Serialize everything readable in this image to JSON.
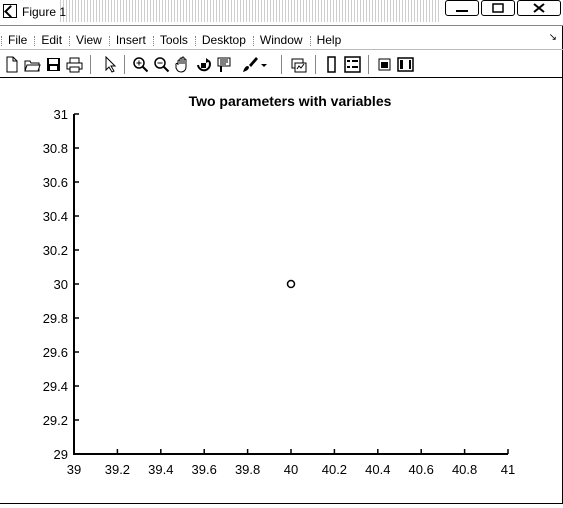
{
  "window": {
    "title": "Figure 1"
  },
  "menu": [
    "File",
    "Edit",
    "View",
    "Insert",
    "Tools",
    "Desktop",
    "Window",
    "Help"
  ],
  "toolbar_icons": [
    "new-figure-icon",
    "open-file-icon",
    "save-icon",
    "print-icon",
    "edit-plot-icon",
    "zoom-in-icon",
    "zoom-out-icon",
    "pan-icon",
    "rotate-3d-icon",
    "data-cursor-icon",
    "brush-icon",
    "link-plot-icon",
    "colorbar-icon",
    "legend-icon",
    "hide-plot-tools-icon",
    "show-plot-tools-icon"
  ],
  "chart_data": {
    "type": "scatter",
    "title": "Two parameters with variables",
    "xlabel": "",
    "ylabel": "",
    "xlim": [
      39,
      41
    ],
    "ylim": [
      29,
      31
    ],
    "xticks": [
      "39",
      "39.2",
      "39.4",
      "39.6",
      "39.8",
      "40",
      "40.2",
      "40.4",
      "40.6",
      "40.8",
      "41"
    ],
    "yticks": [
      "29",
      "29.2",
      "29.4",
      "29.6",
      "29.8",
      "30",
      "30.2",
      "30.4",
      "30.6",
      "30.8",
      "31"
    ],
    "points": [
      {
        "x": 40,
        "y": 30
      }
    ],
    "marker": "circle-open",
    "grid": false
  }
}
